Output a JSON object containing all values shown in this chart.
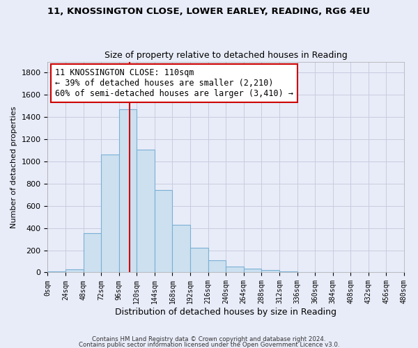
{
  "title1": "11, KNOSSINGTON CLOSE, LOWER EARLEY, READING, RG6 4EU",
  "title2": "Size of property relative to detached houses in Reading",
  "xlabel": "Distribution of detached houses by size in Reading",
  "ylabel": "Number of detached properties",
  "bar_color": "#cce0f0",
  "bar_edge_color": "#7ab0d4",
  "bins": [
    0,
    24,
    48,
    72,
    96,
    120,
    144,
    168,
    192,
    216,
    240,
    264,
    288,
    312,
    336,
    360,
    384,
    408,
    432,
    456,
    480
  ],
  "counts": [
    10,
    30,
    355,
    1060,
    1470,
    1110,
    740,
    430,
    225,
    110,
    55,
    35,
    20,
    10,
    5,
    0,
    0,
    0,
    0,
    0
  ],
  "property_size": 110,
  "vline_color": "#cc0000",
  "annotation_line1": "11 KNOSSINGTON CLOSE: 110sqm",
  "annotation_line2": "← 39% of detached houses are smaller (2,210)",
  "annotation_line3": "60% of semi-detached houses are larger (3,410) →",
  "ylim": [
    0,
    1900
  ],
  "yticks": [
    0,
    200,
    400,
    600,
    800,
    1000,
    1200,
    1400,
    1600,
    1800
  ],
  "footer1": "Contains HM Land Registry data © Crown copyright and database right 2024.",
  "footer2": "Contains public sector information licensed under the Open Government Licence v3.0.",
  "background_color": "#e8ecf8",
  "plot_background": "#e8ecf8",
  "grid_color": "#c8cce0"
}
